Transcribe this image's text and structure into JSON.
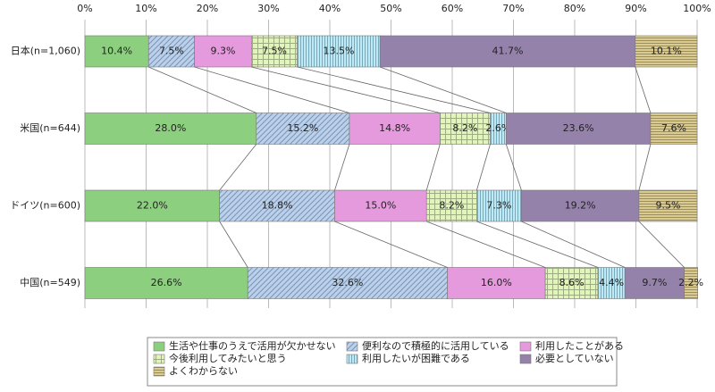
{
  "chart_data": {
    "type": "bar",
    "orientation": "horizontal",
    "stacked": true,
    "categories": [
      "日本(n=1,060)",
      "米国(n=644)",
      "ドイツ(n=600)",
      "中国(n=549)"
    ],
    "xlim": [
      0,
      100
    ],
    "xticks": [
      {
        "value": 0,
        "label": "0%"
      },
      {
        "value": 10,
        "label": "10%"
      },
      {
        "value": 20,
        "label": "20%"
      },
      {
        "value": 30,
        "label": "30%"
      },
      {
        "value": 40,
        "label": "40%"
      },
      {
        "value": 50,
        "label": "50%"
      },
      {
        "value": 60,
        "label": "60%"
      },
      {
        "value": 70,
        "label": "70%"
      },
      {
        "value": 80,
        "label": "80%"
      },
      {
        "value": 90,
        "label": "90%"
      },
      {
        "value": 100,
        "label": "100%"
      }
    ],
    "grid": true,
    "series": [
      {
        "name": "生活や仕事のうえで活用が欠かせない",
        "color": "#8ccf7e",
        "values": [
          10.4,
          28.0,
          22.0,
          26.6
        ],
        "value_labels": [
          "10.4%",
          "28.0%",
          "22.0%",
          "26.6%"
        ]
      },
      {
        "name": "便利なので積極的に活用している",
        "color": "#b9d1ee",
        "pattern": "hatch",
        "values": [
          7.5,
          15.2,
          18.8,
          32.6
        ],
        "value_labels": [
          "7.5%",
          "15.2%",
          "18.8%",
          "32.6%"
        ]
      },
      {
        "name": "利用したことがある",
        "color": "#e59add",
        "values": [
          9.3,
          14.8,
          15.0,
          16.0
        ],
        "value_labels": [
          "9.3%",
          "14.8%",
          "15.0%",
          "16.0%"
        ]
      },
      {
        "name": "今後利用してみたいと思う",
        "color": "#e2f5b8",
        "pattern": "grid",
        "values": [
          7.5,
          8.2,
          8.2,
          8.6
        ],
        "value_labels": [
          "7.5%",
          "8.2%",
          "8.2%",
          "8.6%"
        ]
      },
      {
        "name": "利用したいが困難である",
        "color": "#b9ebfb",
        "pattern": "vertical",
        "values": [
          13.5,
          2.6,
          7.3,
          4.4
        ],
        "value_labels": [
          "13.5%",
          "2.6%",
          "7.3%",
          "4.4%"
        ]
      },
      {
        "name": "必要としていない",
        "color": "#9482ab",
        "values": [
          41.7,
          23.6,
          19.2,
          9.7
        ],
        "value_labels": [
          "41.7%",
          "23.6%",
          "19.2%",
          "9.7%"
        ]
      },
      {
        "name": "よくわからない",
        "color": "#dccb8e",
        "pattern": "horizontal",
        "values": [
          10.1,
          7.6,
          9.5,
          2.2
        ],
        "value_labels": [
          "10.1%",
          "7.6%",
          "9.5%",
          "2.2%"
        ]
      }
    ]
  }
}
